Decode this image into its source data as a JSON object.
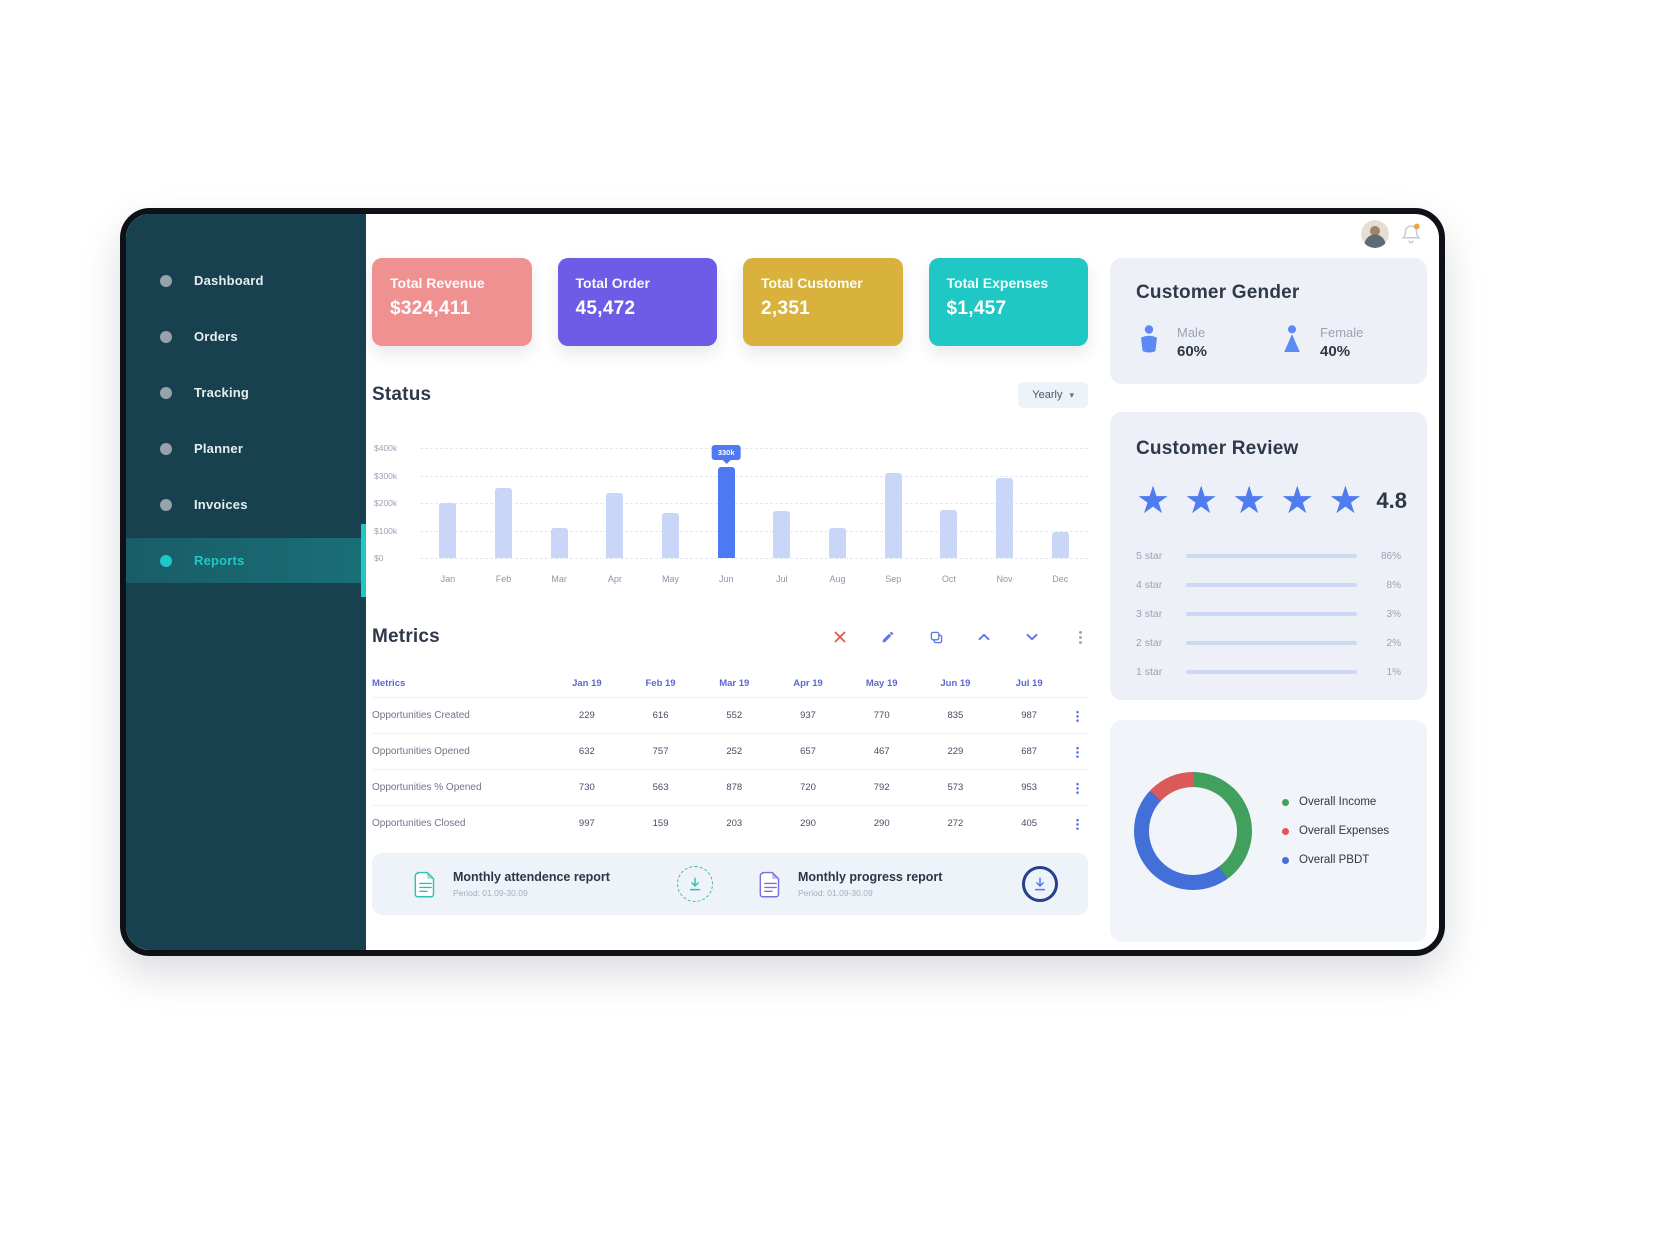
{
  "app": {
    "user": {
      "avatar_alt": "user avatar"
    },
    "notifications": {
      "has_alert": true,
      "alert_color": "#f2a23c"
    }
  },
  "sidebar": {
    "accent_color": "#1fc8c4",
    "items": [
      {
        "label": "Dashboard",
        "active": false
      },
      {
        "label": "Orders",
        "active": false
      },
      {
        "label": "Tracking",
        "active": false
      },
      {
        "label": "Planner",
        "active": false
      },
      {
        "label": "Invoices",
        "active": false
      },
      {
        "label": "Reports",
        "active": true
      }
    ]
  },
  "summary_cards": [
    {
      "label": "Total Revenue",
      "value": "$324,411",
      "color": "#ef9191"
    },
    {
      "label": "Total Order",
      "value": "45,472",
      "color": "#6e5ce6"
    },
    {
      "label": "Total Customer",
      "value": "2,351",
      "color": "#d9b23e"
    },
    {
      "label": "Total Expenses",
      "value": "$1,457",
      "color": "#1fc8c4"
    }
  ],
  "status": {
    "title": "Status",
    "filter": {
      "label": "Yearly"
    },
    "chart_data": {
      "type": "bar",
      "categories": [
        "Jan",
        "Feb",
        "Mar",
        "Apr",
        "May",
        "Jun",
        "Jul",
        "Aug",
        "Sep",
        "Oct",
        "Nov",
        "Dec"
      ],
      "values": [
        200,
        255,
        110,
        235,
        165,
        330,
        170,
        110,
        310,
        175,
        290,
        95
      ],
      "unit": "$k",
      "ylim": [
        0,
        400
      ],
      "yticks": [
        "$400k",
        "$300k",
        "$200k",
        "$100k",
        "$0"
      ],
      "grid": true,
      "bar_color": "#c9d6f8",
      "highlight": {
        "index": 5,
        "tooltip": "330k",
        "color": "#4f79f3"
      }
    }
  },
  "metrics": {
    "title": "Metrics",
    "toolbar_icons": [
      {
        "name": "close-icon"
      },
      {
        "name": "edit-icon"
      },
      {
        "name": "copy-icon"
      },
      {
        "name": "chevron-up-icon"
      },
      {
        "name": "chevron-down-icon"
      },
      {
        "name": "kebab-icon"
      }
    ],
    "columns": [
      "Metrics",
      "Jan 19",
      "Feb 19",
      "Mar 19",
      "Apr 19",
      "May 19",
      "Jun 19",
      "Jul 19"
    ],
    "rows": [
      {
        "label": "Opportunities Created",
        "values": [
          "229",
          "616",
          "552",
          "937",
          "770",
          "835",
          "987"
        ]
      },
      {
        "label": "Opportunities Opened",
        "values": [
          "632",
          "757",
          "252",
          "657",
          "467",
          "229",
          "687"
        ]
      },
      {
        "label": "Opportunities % Opened",
        "values": [
          "730",
          "563",
          "878",
          "720",
          "792",
          "573",
          "953"
        ]
      },
      {
        "label": "Opportunities Closed",
        "values": [
          "997",
          "159",
          "203",
          "290",
          "290",
          "272",
          "405"
        ]
      }
    ]
  },
  "reports": [
    {
      "title": "Monthly attendence report",
      "period": "Period: 01.09-30.09",
      "accent": "#35c0ad",
      "download_style": "dashed"
    },
    {
      "title": "Monthly progress report",
      "period": "Period: 01.09-30.09",
      "accent": "#7c6fe0",
      "download_style": "solid"
    }
  ],
  "customer_gender": {
    "title": "Customer Gender",
    "icon_color": "#5b8af5",
    "items": [
      {
        "label": "Male",
        "value": "60%"
      },
      {
        "label": "Female",
        "value": "40%"
      }
    ]
  },
  "customer_review": {
    "title": "Customer Review",
    "rating": "4.8",
    "stars": 5,
    "star_color": "#4f7cf0",
    "breakdown": [
      {
        "label": "5 star",
        "percent": "86%",
        "bar_fill_pct": 100
      },
      {
        "label": "4 star",
        "percent": "8%",
        "bar_fill_pct": 16
      },
      {
        "label": "3 star",
        "percent": "3%",
        "bar_fill_pct": 8
      },
      {
        "label": "2 star",
        "percent": "2%",
        "bar_fill_pct": 5
      },
      {
        "label": "1 star",
        "percent": "1%",
        "bar_fill_pct": 2
      }
    ]
  },
  "overall_donut": {
    "chart_data": {
      "type": "pie",
      "donut": true,
      "segments": [
        {
          "name": "Overall Income",
          "color": "#42a05e",
          "value": 40
        },
        {
          "name": "Overall PBDT",
          "color": "#4270d8",
          "value": 47
        },
        {
          "name": "Overall Expenses",
          "color": "#da5a5a",
          "value": 13
        }
      ]
    },
    "legend": [
      {
        "label": "Overall Income",
        "color": "#42a05e"
      },
      {
        "label": "Overall Expenses",
        "color": "#da5a5a"
      },
      {
        "label": "Overall PBDT",
        "color": "#4270d8"
      }
    ]
  }
}
